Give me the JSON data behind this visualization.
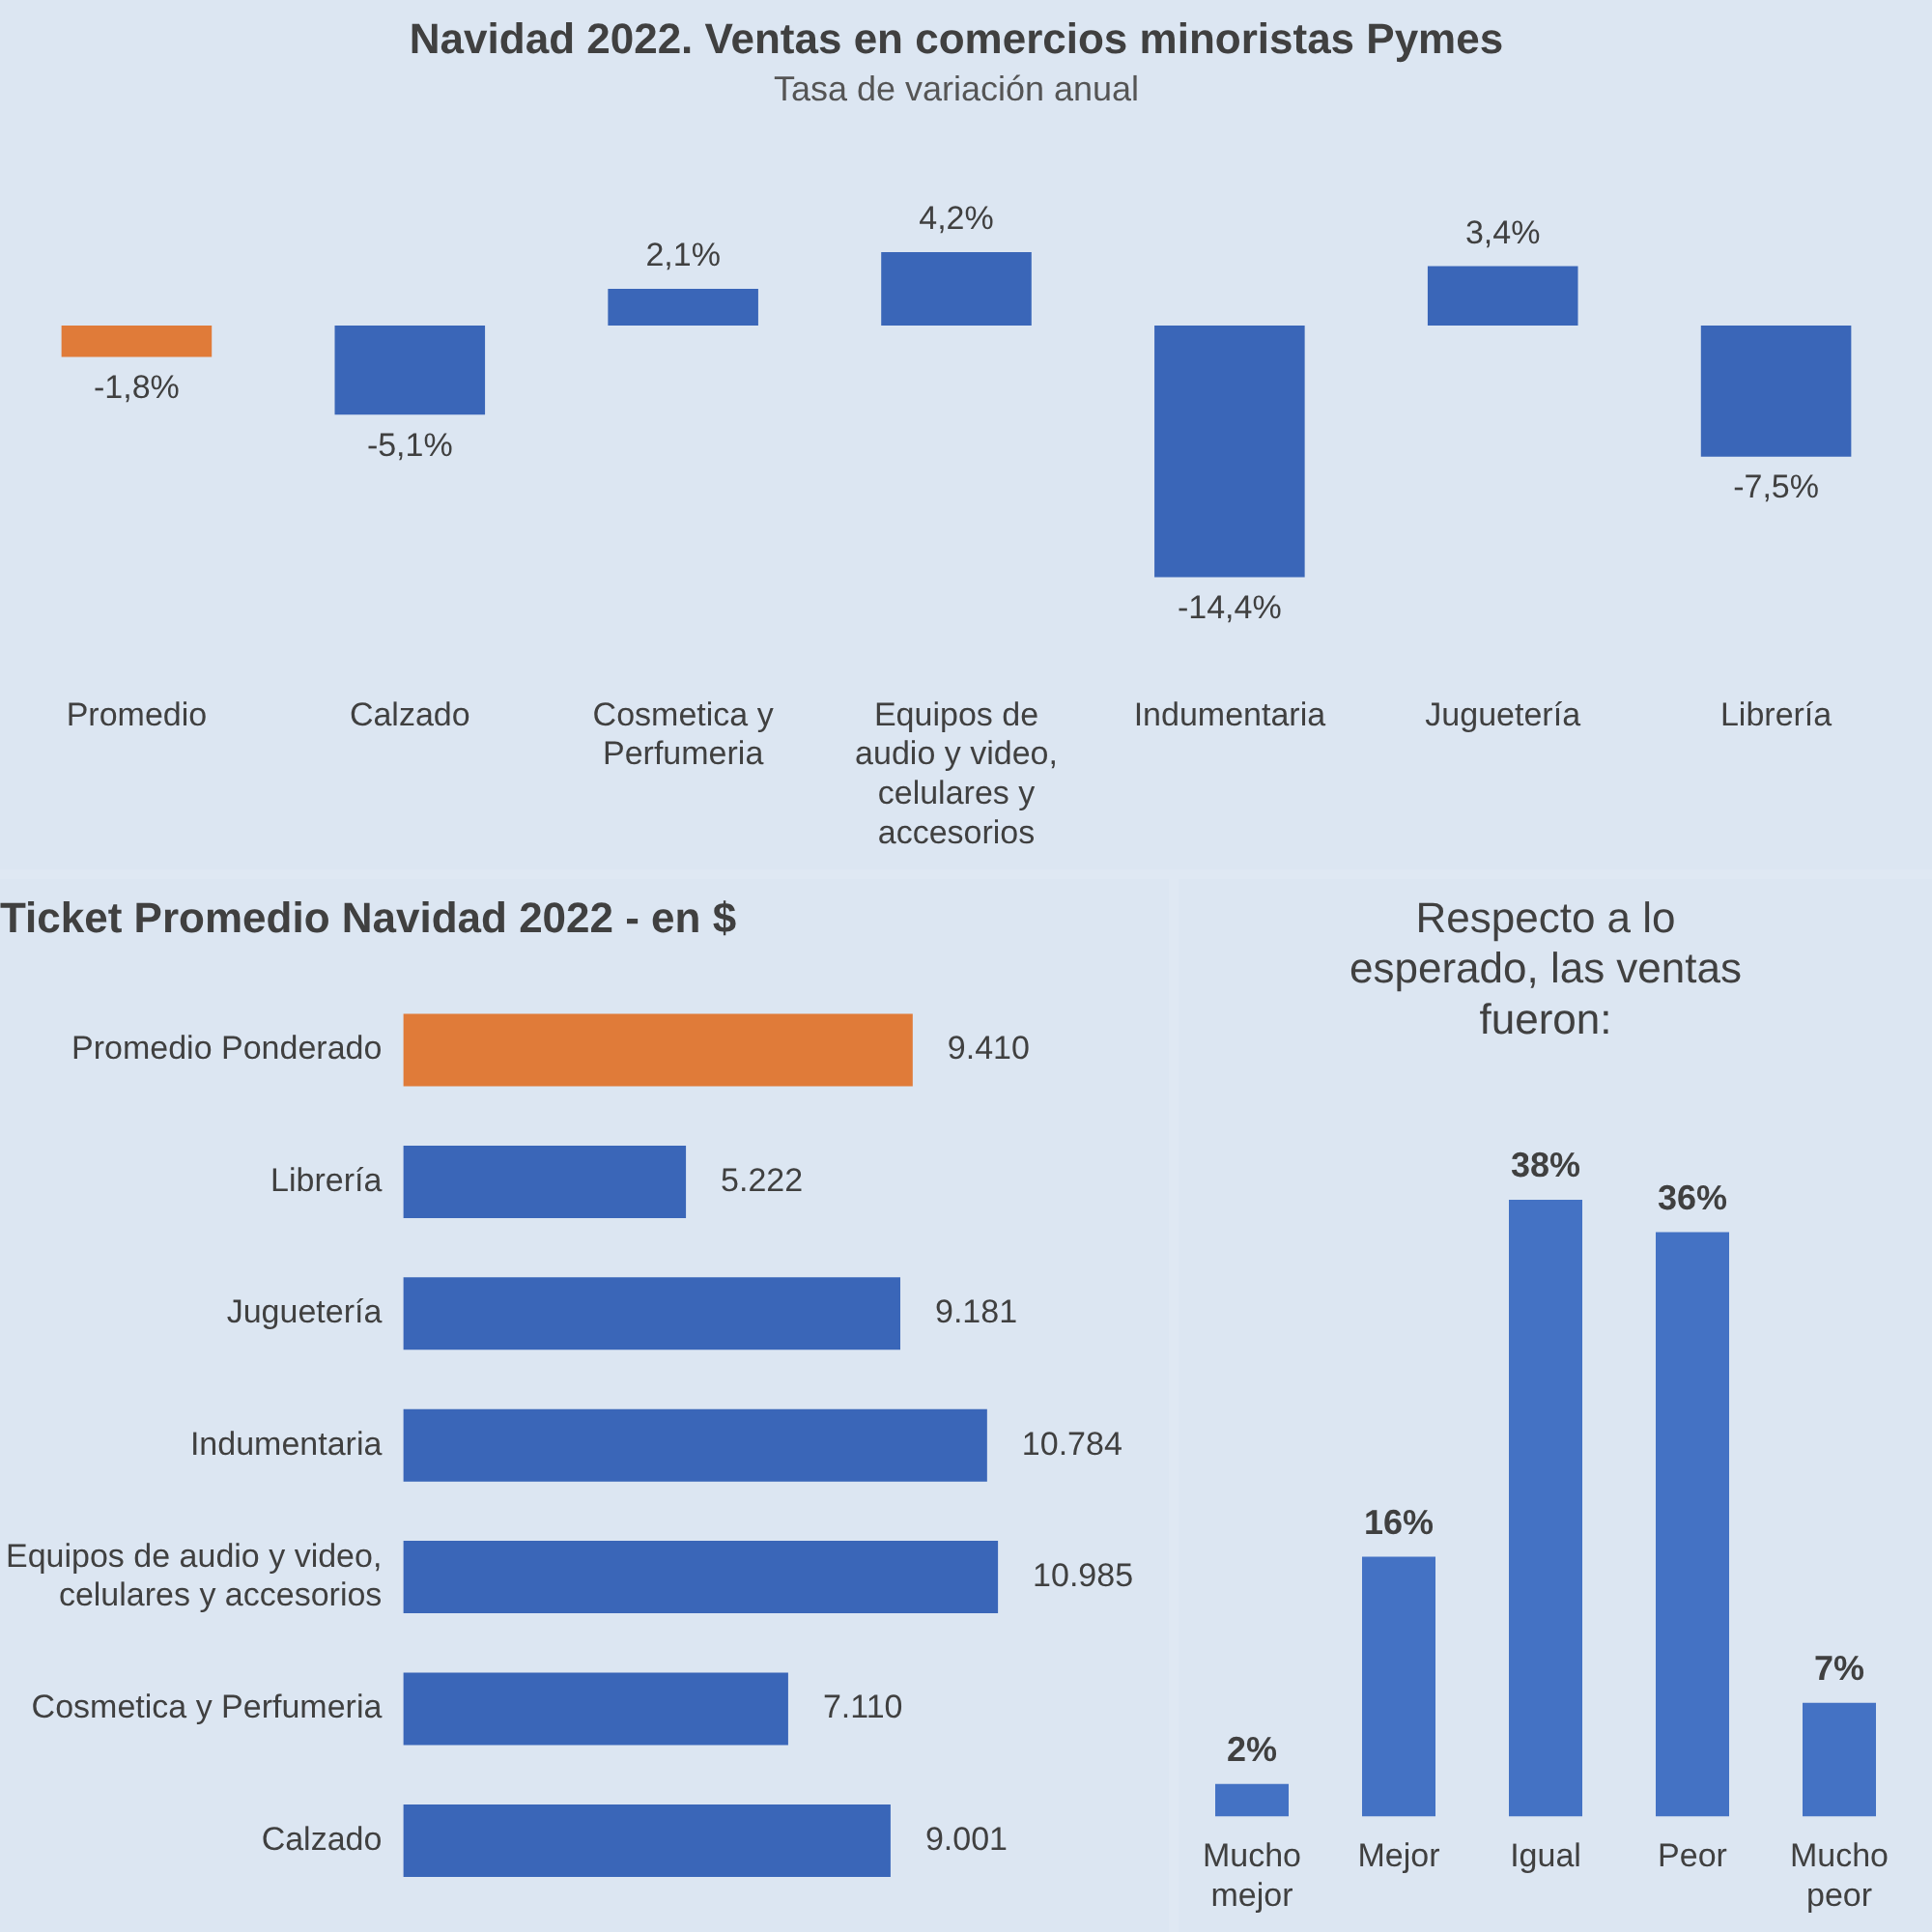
{
  "chart_data": [
    {
      "type": "bar",
      "title": "Navidad 2022. Ventas en comercios minoristas Pymes",
      "subtitle": "Tasa de variación anual",
      "categories": [
        "Promedio",
        "Calzado",
        "Cosmetica y Perfumeria",
        "Equipos de audio y video, celulares y accesorios",
        "Indumentaria",
        "Juguetería",
        "Librería"
      ],
      "values": [
        -1.8,
        -5.1,
        2.1,
        4.2,
        -14.4,
        3.4,
        -7.5
      ],
      "colors": [
        "#e07b39",
        "#3a66b8",
        "#3a66b8",
        "#3a66b8",
        "#3a66b8",
        "#3a66b8",
        "#3a66b8"
      ],
      "value_labels": [
        "-1,8%",
        "-5,1%",
        "2,1%",
        "4,2%",
        "-14,4%",
        "3,4%",
        "-7,5%"
      ]
    },
    {
      "type": "bar",
      "orientation": "horizontal",
      "title": "Ticket Promedio Navidad 2022 - en $",
      "categories": [
        "Promedio Ponderado",
        "Librería",
        "Juguetería",
        "Indumentaria",
        "Equipos de audio y video, celulares y accesorios",
        "Cosmetica y Perfumeria",
        "Calzado"
      ],
      "values": [
        9410,
        5222,
        9181,
        10784,
        10985,
        7110,
        9001
      ],
      "colors": [
        "#e07b39",
        "#3a66b8",
        "#3a66b8",
        "#3a66b8",
        "#3a66b8",
        "#3a66b8",
        "#3a66b8"
      ],
      "value_labels": [
        "9.410",
        "5.222",
        "9.181",
        "10.784",
        "10.985",
        "7.110",
        "9.001"
      ]
    },
    {
      "type": "bar",
      "title": "Respecto a lo esperado, las ventas fueron:",
      "categories": [
        "Mucho mejor",
        "Mejor",
        "Igual",
        "Peor",
        "Mucho peor"
      ],
      "values": [
        2,
        16,
        38,
        36,
        7
      ],
      "color": "#4472c4",
      "value_labels": [
        "2%",
        "16%",
        "38%",
        "36%",
        "7%"
      ]
    }
  ]
}
